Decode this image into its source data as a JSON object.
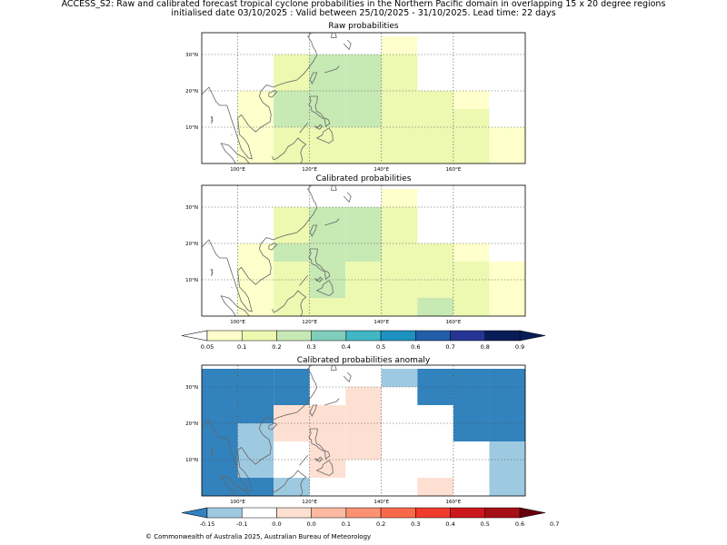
{
  "header": {
    "line1": "ACCESS_S2: Raw and calibrated forecast tropical cyclone probabilities in the Northern Pacific domain in overlapping 15 x 20 degree regions",
    "line2": "initialised date 03/10/2025 :  Valid between 25/10/2025 - 31/10/2025. Lead time: 22 days"
  },
  "credit": "© Commonwealth of Australia 2025, Australian Bureau of Meteorology",
  "colors": {
    "prob": [
      "#ffffcc",
      "#edf8b1",
      "#c7e9b4",
      "#7fcdbb",
      "#41b6c4",
      "#1d91c0",
      "#225ea8",
      "#253494",
      "#081d58"
    ],
    "anom": [
      "#3182bd",
      "#9ecae1",
      "#ffffff",
      "#fee0d2",
      "#fcbba1",
      "#fc9272",
      "#fb6a4a",
      "#ef3b2c",
      "#cb181d",
      "#99000d"
    ],
    "coast": "#666666"
  },
  "chart_data": [
    {
      "type": "heatmap",
      "title": "Raw probabilities",
      "x": [
        95,
        105,
        115,
        125,
        135,
        145,
        155,
        165,
        175
      ],
      "y": [
        32.5,
        27.5,
        22.5,
        17.5,
        12.5,
        7.5,
        2.5
      ],
      "xlim": [
        90,
        180
      ],
      "ylim": [
        0,
        36
      ],
      "xticks": [
        "100°E",
        "120°E",
        "140°E",
        "160°E"
      ],
      "yticks": [
        "10°N",
        "20°N",
        "30°N"
      ],
      "values": [
        [
          null,
          null,
          null,
          null,
          null,
          0.06,
          null,
          null,
          null
        ],
        [
          null,
          null,
          0.12,
          0.25,
          0.25,
          0.12,
          null,
          null,
          null
        ],
        [
          null,
          null,
          0.12,
          0.25,
          0.25,
          0.12,
          null,
          null,
          null
        ],
        [
          null,
          0.05,
          0.25,
          0.25,
          0.25,
          0.12,
          0.12,
          0.06,
          null
        ],
        [
          null,
          0.05,
          0.25,
          0.25,
          0.25,
          0.12,
          0.12,
          0.12,
          null
        ],
        [
          null,
          0.05,
          0.12,
          0.12,
          0.12,
          0.12,
          0.12,
          0.12,
          0.06
        ],
        [
          null,
          0.05,
          0.12,
          0.12,
          0.12,
          0.12,
          0.12,
          0.12,
          0.06
        ]
      ]
    },
    {
      "type": "heatmap",
      "title": "Calibrated probabilities",
      "x": [
        95,
        105,
        115,
        125,
        135,
        145,
        155,
        165,
        175
      ],
      "y": [
        32.5,
        27.5,
        22.5,
        17.5,
        12.5,
        7.5,
        2.5
      ],
      "xlim": [
        90,
        180
      ],
      "ylim": [
        0,
        36
      ],
      "xticks": [
        "100°E",
        "120°E",
        "140°E",
        "160°E"
      ],
      "yticks": [
        "10°N",
        "20°N",
        "30°N"
      ],
      "values": [
        [
          null,
          null,
          null,
          null,
          null,
          0.06,
          null,
          null,
          null
        ],
        [
          null,
          null,
          0.12,
          0.25,
          0.25,
          0.12,
          null,
          null,
          null
        ],
        [
          null,
          null,
          0.12,
          0.25,
          0.25,
          0.12,
          null,
          null,
          null
        ],
        [
          null,
          0.05,
          0.25,
          0.25,
          0.25,
          0.12,
          0.12,
          0.06,
          null
        ],
        [
          null,
          0.05,
          0.12,
          0.25,
          0.12,
          0.12,
          0.12,
          0.12,
          0.06
        ],
        [
          null,
          0.05,
          0.12,
          0.25,
          0.12,
          0.12,
          0.12,
          0.12,
          0.06
        ],
        [
          null,
          0.05,
          0.12,
          0.12,
          0.12,
          0.12,
          0.25,
          0.12,
          0.06
        ]
      ]
    },
    {
      "type": "heatmap",
      "title": "Calibrated probabilities anomaly",
      "x": [
        95,
        105,
        115,
        125,
        135,
        145,
        155,
        165,
        175
      ],
      "y": [
        32.5,
        27.5,
        22.5,
        17.5,
        12.5,
        7.5,
        2.5
      ],
      "xlim": [
        90,
        180
      ],
      "ylim": [
        0,
        36
      ],
      "xticks": [
        "100°E",
        "120°E",
        "140°E",
        "160°E"
      ],
      "yticks": [
        "10°N",
        "20°N",
        "30°N"
      ],
      "values": [
        [
          -0.2,
          -0.2,
          -0.2,
          0.0,
          0.0,
          -0.1,
          -0.2,
          -0.2,
          -0.2
        ],
        [
          -0.2,
          -0.2,
          -0.2,
          0.0,
          0.05,
          0.0,
          -0.2,
          -0.2,
          -0.2
        ],
        [
          -0.2,
          -0.2,
          0.05,
          0.05,
          0.05,
          0.0,
          0.0,
          -0.2,
          -0.2
        ],
        [
          -0.2,
          -0.1,
          0.05,
          0.05,
          0.05,
          0.0,
          0.0,
          -0.2,
          -0.2
        ],
        [
          -0.2,
          -0.1,
          0.0,
          0.05,
          0.05,
          0.0,
          0.0,
          0.0,
          -0.1
        ],
        [
          -0.2,
          -0.1,
          0.0,
          0.05,
          0.0,
          0.0,
          0.0,
          0.0,
          -0.1
        ],
        [
          -0.2,
          -0.2,
          -0.1,
          0.0,
          0.0,
          0.0,
          0.05,
          0.0,
          -0.1
        ]
      ]
    },
    {
      "type": "colorbar",
      "name": "probability-colorbar",
      "bounds": [
        0.05,
        0.1,
        0.2,
        0.3,
        0.4,
        0.5,
        0.6,
        0.7,
        0.8,
        0.9
      ],
      "tick_labels": [
        "0.05",
        "0.1",
        "0.2",
        "0.3",
        "0.4",
        "0.5",
        "0.6",
        "0.7",
        "0.8",
        "0.9"
      ]
    },
    {
      "type": "colorbar",
      "name": "anomaly-colorbar",
      "bounds": [
        -0.15,
        -0.1,
        0.0,
        0.0,
        0.1,
        0.2,
        0.3,
        0.4,
        0.5,
        0.6,
        0.7
      ],
      "tick_labels": [
        "-0.15",
        "-0.1",
        "0.0",
        "0.0",
        "0.1",
        "0.2",
        "0.3",
        "0.4",
        "0.5",
        "0.6",
        "0.7"
      ]
    }
  ]
}
